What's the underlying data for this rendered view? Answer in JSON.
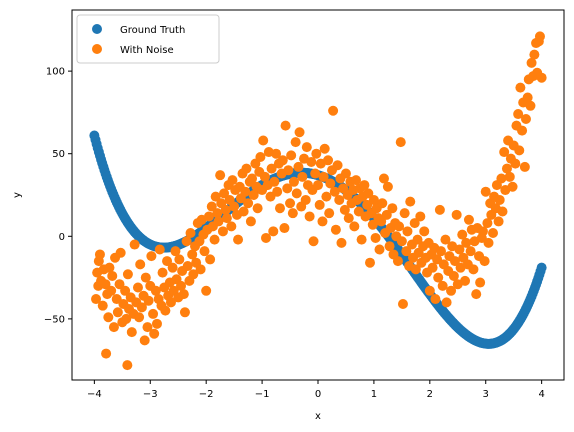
{
  "chart_data": {
    "type": "scatter",
    "title": "",
    "xlabel": "x",
    "ylabel": "y",
    "xlim": [
      -4.4,
      4.4
    ],
    "ylim": [
      -87,
      137
    ],
    "xticks": [
      -4,
      -3,
      -2,
      -1,
      0,
      1,
      2,
      3,
      4
    ],
    "yticks": [
      -50,
      0,
      50,
      100
    ],
    "grid": false,
    "legend_position": "top-left",
    "series": [
      {
        "name": "Ground Truth",
        "color": "#1f77b4",
        "formula": "y = x^4 - 17x^2 - 10x + 37, sampled at 400 points on [-4, 4]"
      },
      {
        "name": "With Noise",
        "color": "#ff7f0e",
        "points": [
          [
            -3.97,
            -38
          ],
          [
            -3.95,
            -22
          ],
          [
            -3.93,
            -30
          ],
          [
            -3.92,
            -15
          ],
          [
            -3.9,
            -11
          ],
          [
            -3.88,
            -27
          ],
          [
            -3.85,
            -42
          ],
          [
            -3.83,
            -20
          ],
          [
            -3.8,
            -29
          ],
          [
            -3.79,
            -71
          ],
          [
            -3.77,
            -35
          ],
          [
            -3.75,
            -49
          ],
          [
            -3.73,
            -19
          ],
          [
            -3.7,
            -33
          ],
          [
            -3.68,
            -24
          ],
          [
            -3.65,
            -55
          ],
          [
            -3.63,
            -13
          ],
          [
            -3.6,
            -38
          ],
          [
            -3.58,
            -46
          ],
          [
            -3.55,
            -29
          ],
          [
            -3.53,
            -10
          ],
          [
            -3.5,
            -52
          ],
          [
            -3.48,
            -41
          ],
          [
            -3.45,
            -33
          ],
          [
            -3.43,
            -50
          ],
          [
            -3.41,
            -78
          ],
          [
            -3.4,
            -23
          ],
          [
            -3.38,
            -44
          ],
          [
            -3.35,
            -37
          ],
          [
            -3.33,
            -58
          ],
          [
            -3.3,
            -47
          ],
          [
            -3.28,
            -5
          ],
          [
            -3.25,
            -40
          ],
          [
            -3.22,
            -31
          ],
          [
            -3.2,
            -49
          ],
          [
            -3.18,
            -17
          ],
          [
            -3.15,
            -43
          ],
          [
            -3.12,
            -36
          ],
          [
            -3.1,
            -63
          ],
          [
            -3.08,
            -25
          ],
          [
            -3.05,
            -55
          ],
          [
            -3.03,
            -39
          ],
          [
            -3,
            -30
          ],
          [
            -2.98,
            -12
          ],
          [
            -2.95,
            -47
          ],
          [
            -2.93,
            -59
          ],
          [
            -2.9,
            -33
          ],
          [
            -2.88,
            -53
          ],
          [
            -2.85,
            -38
          ],
          [
            -2.83,
            -8
          ],
          [
            -2.8,
            -42
          ],
          [
            -2.78,
            -22
          ],
          [
            -2.75,
            -31
          ],
          [
            -2.73,
            -45
          ],
          [
            -2.7,
            -15
          ],
          [
            -2.68,
            -36
          ],
          [
            -2.65,
            -28
          ],
          [
            -2.63,
            -40
          ],
          [
            -2.6,
            -19
          ],
          [
            -2.58,
            -33
          ],
          [
            -2.55,
            -9
          ],
          [
            -2.53,
            -26
          ],
          [
            -2.5,
            -37
          ],
          [
            -2.48,
            -14
          ],
          [
            -2.45,
            -30
          ],
          [
            -2.43,
            -21
          ],
          [
            -2.4,
            -35
          ],
          [
            -2.38,
            -46
          ],
          [
            -2.35,
            -3
          ],
          [
            -2.33,
            -18
          ],
          [
            -2.3,
            -27
          ],
          [
            -2.28,
            2
          ],
          [
            -2.25,
            -11
          ],
          [
            -2.23,
            -23
          ],
          [
            -2.2,
            -6
          ],
          [
            -2.18,
            -16
          ],
          [
            -2.15,
            8
          ],
          [
            -2.12,
            -3
          ],
          [
            -2.1,
            -20
          ],
          [
            -2.08,
            10
          ],
          [
            -2.05,
            1
          ],
          [
            -2.03,
            -9
          ],
          [
            -2,
            -33
          ],
          [
            -1.98,
            4
          ],
          [
            -1.95,
            12
          ],
          [
            -1.93,
            -14
          ],
          [
            -1.9,
            18
          ],
          [
            -1.88,
            6
          ],
          [
            -1.85,
            -2
          ],
          [
            -1.83,
            24
          ],
          [
            -1.8,
            14
          ],
          [
            -1.78,
            9
          ],
          [
            -1.75,
            37
          ],
          [
            -1.73,
            20
          ],
          [
            -1.7,
            3
          ],
          [
            -1.68,
            26
          ],
          [
            -1.65,
            16
          ],
          [
            -1.63,
            11
          ],
          [
            -1.6,
            31
          ],
          [
            -1.58,
            22
          ],
          [
            -1.55,
            6
          ],
          [
            -1.53,
            34
          ],
          [
            -1.5,
            18
          ],
          [
            -1.48,
            28
          ],
          [
            -1.45,
            13
          ],
          [
            -1.43,
            -2
          ],
          [
            -1.4,
            30
          ],
          [
            -1.38,
            23
          ],
          [
            -1.35,
            38
          ],
          [
            -1.33,
            15
          ],
          [
            -1.3,
            27
          ],
          [
            -1.28,
            41
          ],
          [
            -1.25,
            20
          ],
          [
            -1.22,
            33
          ],
          [
            -1.2,
            9
          ],
          [
            -1.18,
            35
          ],
          [
            -1.15,
            25
          ],
          [
            -1.12,
            44
          ],
          [
            -1.1,
            30
          ],
          [
            -1.08,
            17
          ],
          [
            -1.05,
            39
          ],
          [
            -1.03,
            48
          ],
          [
            -1,
            28
          ],
          [
            -0.98,
            58
          ],
          [
            -0.95,
            36
          ],
          [
            -0.93,
            -1
          ],
          [
            -0.9,
            31
          ],
          [
            -0.88,
            51
          ],
          [
            -0.85,
            24
          ],
          [
            -0.83,
            41
          ],
          [
            -0.8,
            3
          ],
          [
            -0.78,
            33
          ],
          [
            -0.75,
            50
          ],
          [
            -0.73,
            27
          ],
          [
            -0.7,
            44
          ],
          [
            -0.68,
            17
          ],
          [
            -0.65,
            38
          ],
          [
            -0.63,
            46
          ],
          [
            -0.6,
            5
          ],
          [
            -0.58,
            67
          ],
          [
            -0.55,
            29
          ],
          [
            -0.53,
            40
          ],
          [
            -0.5,
            20
          ],
          [
            -0.48,
            49
          ],
          [
            -0.45,
            14
          ],
          [
            -0.43,
            33
          ],
          [
            -0.4,
            57
          ],
          [
            -0.38,
            26
          ],
          [
            -0.35,
            42
          ],
          [
            -0.33,
            63
          ],
          [
            -0.3,
            18
          ],
          [
            -0.28,
            36
          ],
          [
            -0.25,
            47
          ],
          [
            -0.22,
            22
          ],
          [
            -0.2,
            54
          ],
          [
            -0.18,
            31
          ],
          [
            -0.15,
            12
          ],
          [
            -0.12,
            45
          ],
          [
            -0.1,
            28
          ],
          [
            -0.08,
            -3
          ],
          [
            -0.05,
            38
          ],
          [
            -0.03,
            50
          ],
          [
            0,
            31
          ],
          [
            0.03,
            19
          ],
          [
            0.05,
            44
          ],
          [
            0.08,
            9
          ],
          [
            0.1,
            36
          ],
          [
            0.12,
            53
          ],
          [
            0.15,
            24
          ],
          [
            0.18,
            46
          ],
          [
            0.2,
            14
          ],
          [
            0.22,
            32
          ],
          [
            0.25,
            40
          ],
          [
            0.27,
            76
          ],
          [
            0.3,
            27
          ],
          [
            0.32,
            4
          ],
          [
            0.35,
            43
          ],
          [
            0.38,
            22
          ],
          [
            0.4,
            35
          ],
          [
            0.42,
            -4
          ],
          [
            0.45,
            29
          ],
          [
            0.48,
            16
          ],
          [
            0.5,
            38
          ],
          [
            0.53,
            25
          ],
          [
            0.55,
            11
          ],
          [
            0.58,
            33
          ],
          [
            0.6,
            20
          ],
          [
            0.63,
            28
          ],
          [
            0.65,
            6
          ],
          [
            0.68,
            34
          ],
          [
            0.7,
            22
          ],
          [
            0.73,
            15
          ],
          [
            0.75,
            29
          ],
          [
            0.78,
            -2
          ],
          [
            0.8,
            24
          ],
          [
            0.83,
            31
          ],
          [
            0.85,
            12
          ],
          [
            0.88,
            19
          ],
          [
            0.9,
            26
          ],
          [
            0.93,
            -16
          ],
          [
            0.95,
            14
          ],
          [
            0.98,
            7
          ],
          [
            1,
            22
          ],
          [
            1.03,
            -1
          ],
          [
            1.05,
            17
          ],
          [
            1.08,
            11
          ],
          [
            1.1,
            -8
          ],
          [
            1.13,
            9
          ],
          [
            1.15,
            20
          ],
          [
            1.18,
            35
          ],
          [
            1.2,
            2
          ],
          [
            1.23,
            13
          ],
          [
            1.25,
            30
          ],
          [
            1.28,
            -6
          ],
          [
            1.3,
            5
          ],
          [
            1.33,
            17
          ],
          [
            1.35,
            -11
          ],
          [
            1.38,
            8
          ],
          [
            1.4,
            0
          ],
          [
            1.43,
            -15
          ],
          [
            1.45,
            6
          ],
          [
            1.48,
            57
          ],
          [
            1.5,
            -3
          ],
          [
            1.52,
            -41
          ],
          [
            1.55,
            14
          ],
          [
            1.58,
            -9
          ],
          [
            1.6,
            3
          ],
          [
            1.63,
            -18
          ],
          [
            1.65,
            21
          ],
          [
            1.68,
            -5
          ],
          [
            1.7,
            -13
          ],
          [
            1.73,
            8
          ],
          [
            1.75,
            -20
          ],
          [
            1.78,
            -2
          ],
          [
            1.8,
            -10
          ],
          [
            1.83,
            12
          ],
          [
            1.85,
            -16
          ],
          [
            1.88,
            -6
          ],
          [
            1.9,
            3
          ],
          [
            1.93,
            -13
          ],
          [
            1.95,
            -22
          ],
          [
            1.98,
            -4
          ],
          [
            2,
            -33
          ],
          [
            2.03,
            -11
          ],
          [
            2.05,
            -19
          ],
          [
            2.08,
            -7
          ],
          [
            2.1,
            -38
          ],
          [
            2.13,
            -14
          ],
          [
            2.15,
            -25
          ],
          [
            2.18,
            16
          ],
          [
            2.2,
            -9
          ],
          [
            2.23,
            -30
          ],
          [
            2.25,
            -17
          ],
          [
            2.28,
            -2
          ],
          [
            2.3,
            -40
          ],
          [
            2.33,
            -21
          ],
          [
            2.35,
            -12
          ],
          [
            2.38,
            -33
          ],
          [
            2.4,
            -6
          ],
          [
            2.43,
            -24
          ],
          [
            2.45,
            -15
          ],
          [
            2.48,
            13
          ],
          [
            2.5,
            -29
          ],
          [
            2.53,
            -8
          ],
          [
            2.55,
            -19
          ],
          [
            2.58,
            1
          ],
          [
            2.6,
            -13
          ],
          [
            2.63,
            -27
          ],
          [
            2.65,
            -4
          ],
          [
            2.68,
            -17
          ],
          [
            2.7,
            10
          ],
          [
            2.73,
            -9
          ],
          [
            2.75,
            4
          ],
          [
            2.78,
            -20
          ],
          [
            2.8,
            -3
          ],
          [
            2.83,
            -35
          ],
          [
            2.85,
            5
          ],
          [
            2.88,
            -12
          ],
          [
            2.9,
            -28
          ],
          [
            2.93,
            -1
          ],
          [
            2.95,
            3
          ],
          [
            2.98,
            -15
          ],
          [
            3,
            27
          ],
          [
            3.03,
            8
          ],
          [
            3.05,
            -4
          ],
          [
            3.08,
            20
          ],
          [
            3.1,
            13
          ],
          [
            3.13,
            2
          ],
          [
            3.15,
            24
          ],
          [
            3.18,
            17
          ],
          [
            3.2,
            31
          ],
          [
            3.23,
            9
          ],
          [
            3.25,
            22
          ],
          [
            3.28,
            35
          ],
          [
            3.3,
            15
          ],
          [
            3.33,
            51
          ],
          [
            3.35,
            28
          ],
          [
            3.38,
            41
          ],
          [
            3.4,
            58
          ],
          [
            3.43,
            36
          ],
          [
            3.45,
            47
          ],
          [
            3.48,
            30
          ],
          [
            3.5,
            55
          ],
          [
            3.53,
            44
          ],
          [
            3.55,
            67
          ],
          [
            3.58,
            74
          ],
          [
            3.6,
            52
          ],
          [
            3.62,
            90
          ],
          [
            3.65,
            64
          ],
          [
            3.67,
            81
          ],
          [
            3.7,
            42
          ],
          [
            3.72,
            71
          ],
          [
            3.75,
            84
          ],
          [
            3.77,
            95
          ],
          [
            3.8,
            79
          ],
          [
            3.82,
            105
          ],
          [
            3.85,
            97
          ],
          [
            3.87,
            110
          ],
          [
            3.9,
            117
          ],
          [
            3.92,
            99
          ],
          [
            3.95,
            118
          ],
          [
            3.97,
            121
          ],
          [
            4,
            96
          ]
        ]
      }
    ]
  }
}
